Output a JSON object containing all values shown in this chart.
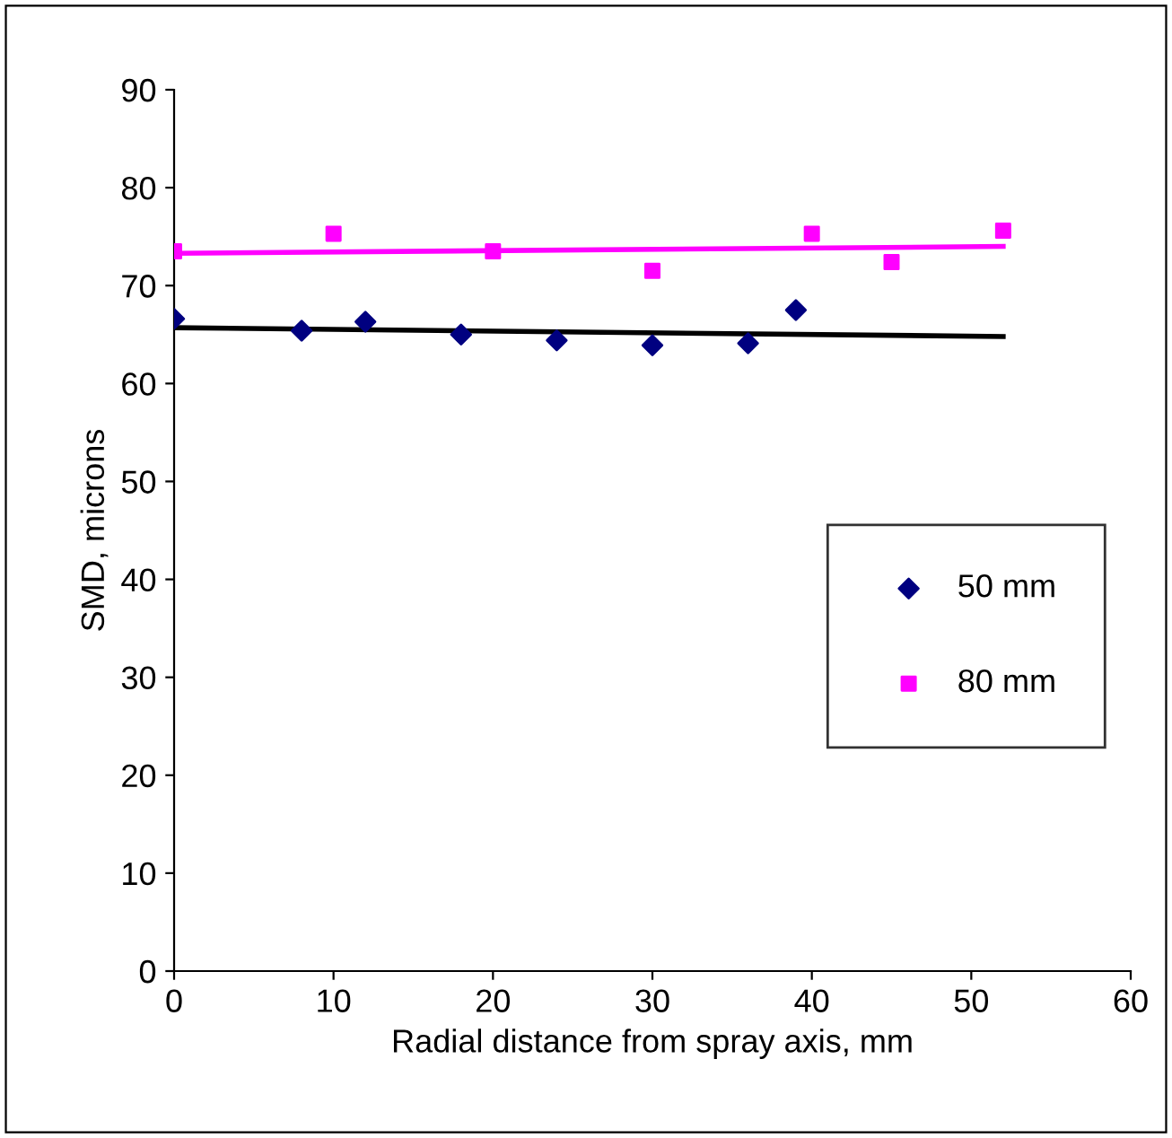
{
  "chart_data": {
    "type": "scatter",
    "xlabel": "Radial distance from spray axis, mm",
    "ylabel": "SMD, microns",
    "xlim": [
      0,
      60
    ],
    "xticks": [
      0,
      10,
      20,
      30,
      40,
      50,
      60
    ],
    "ylim": [
      0,
      90
    ],
    "yticks": [
      0,
      10,
      20,
      30,
      40,
      50,
      60,
      70,
      80,
      90
    ],
    "grid": false,
    "legend": "right",
    "series": [
      {
        "name": "50 mm",
        "color": "#000080",
        "marker": "diamond",
        "x": [
          0,
          8,
          12,
          18,
          24,
          30,
          36,
          39
        ],
        "values": [
          66.6,
          65.4,
          66.3,
          65.0,
          64.4,
          63.9,
          64.1,
          67.5
        ]
      },
      {
        "name": "80 mm",
        "color": "#ff00ff",
        "marker": "square",
        "x": [
          0,
          10,
          20,
          30,
          40,
          45,
          52
        ],
        "values": [
          73.5,
          75.3,
          73.5,
          71.5,
          75.3,
          72.4,
          75.6
        ]
      },
      {
        "type": "line",
        "color": "#000000",
        "marker": "none",
        "x": [
          0,
          52
        ],
        "values": [
          65.7,
          64.8
        ]
      },
      {
        "type": "line",
        "color": "#ff00ff",
        "marker": "none",
        "x": [
          0,
          52
        ],
        "values": [
          73.3,
          74.0
        ]
      }
    ]
  }
}
